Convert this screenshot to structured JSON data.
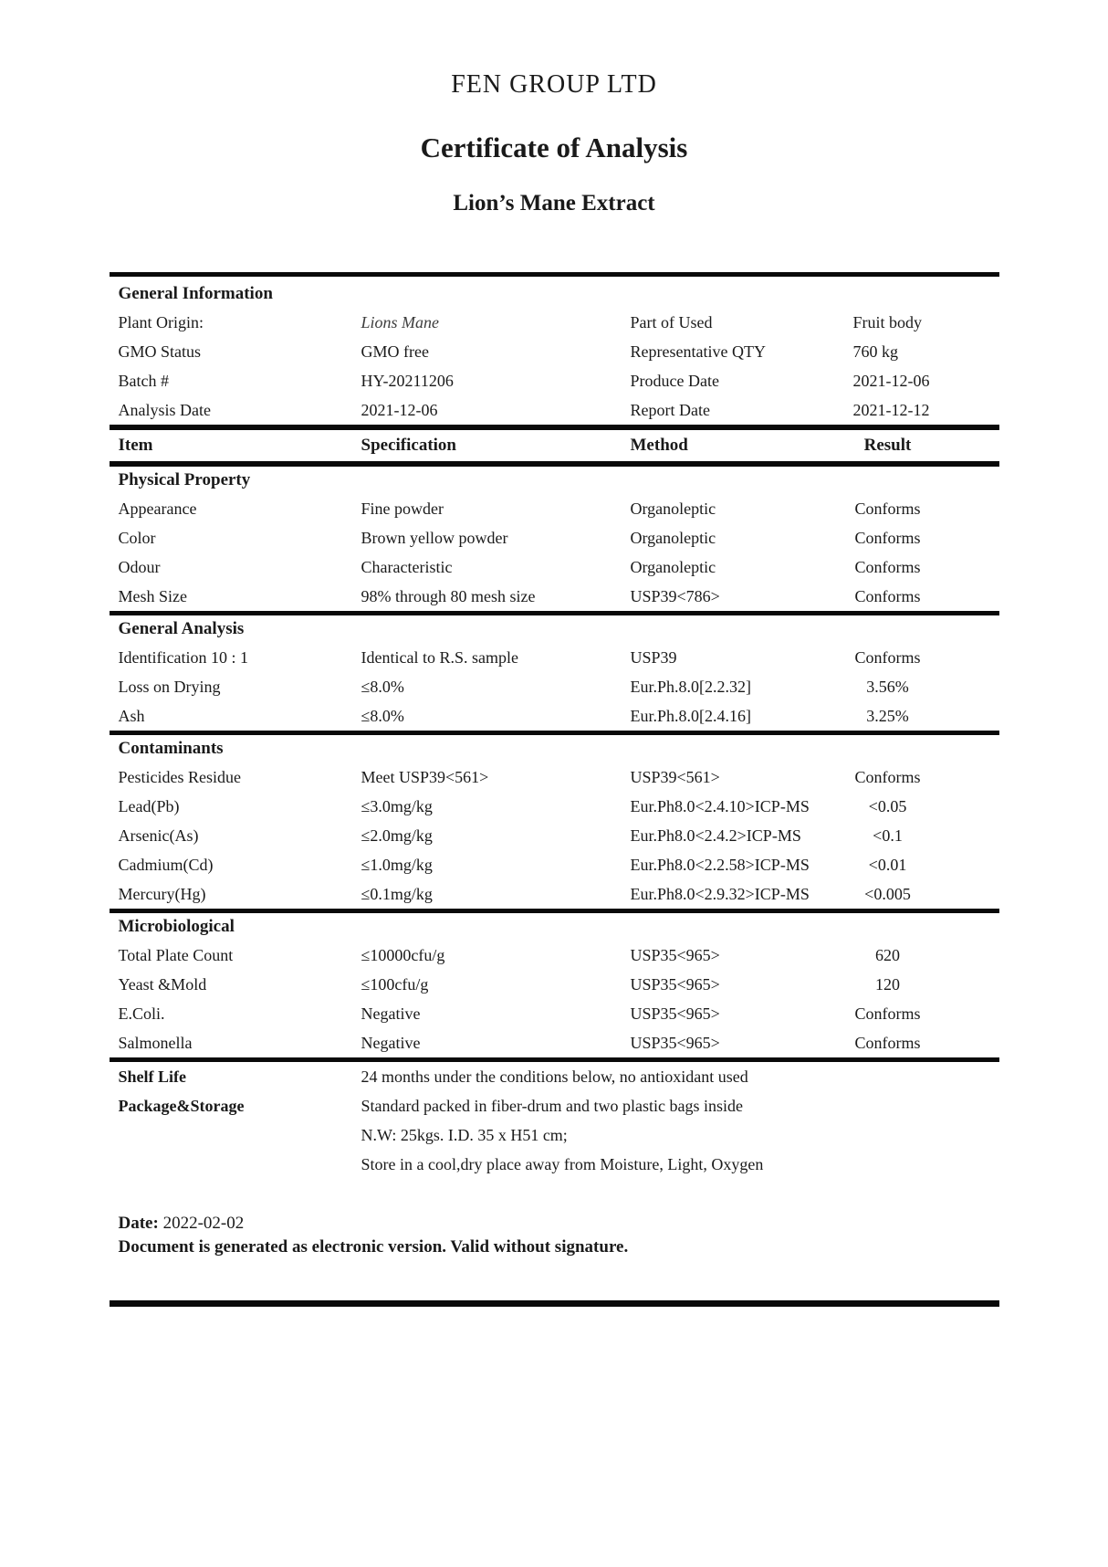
{
  "header": {
    "company": "FEN GROUP LTD",
    "title": "Certificate of Analysis",
    "subtitle": "Lion’s Mane Extract"
  },
  "colors": {
    "text": "#1a1a1a",
    "rule": "#0a0a0a",
    "background": "#ffffff"
  },
  "general_information": {
    "heading": "General Information",
    "rows": [
      {
        "cells": [
          "Plant Origin:",
          "Lions Mane",
          "Part of Used",
          "Fruit body"
        ],
        "italic_cell": 1
      },
      {
        "cells": [
          "GMO Status",
          "GMO free",
          "Representative QTY",
          "760 kg"
        ]
      },
      {
        "cells": [
          "Batch #",
          "HY-20211206",
          "Produce Date",
          "2021-12-06"
        ]
      },
      {
        "cells": [
          "Analysis Date",
          "2021-12-06",
          "Report Date",
          "2021-12-12"
        ]
      }
    ]
  },
  "table": {
    "headers": [
      "Item",
      "Specification",
      "Method",
      "Result"
    ],
    "sections": [
      {
        "heading": "Physical Property",
        "rows": [
          [
            "Appearance",
            "Fine powder",
            "Organoleptic",
            "Conforms"
          ],
          [
            "Color",
            "Brown yellow powder",
            "Organoleptic",
            "Conforms"
          ],
          [
            "Odour",
            "Characteristic",
            "Organoleptic",
            "Conforms"
          ],
          [
            "Mesh Size",
            "98% through 80 mesh size",
            "USP39<786>",
            "Conforms"
          ]
        ]
      },
      {
        "heading": "General Analysis",
        "rows": [
          [
            "Identification 10 : 1",
            "Identical to R.S. sample",
            "USP39",
            "Conforms"
          ],
          [
            "Loss on Drying",
            "≤8.0%",
            "Eur.Ph.8.0[2.2.32]",
            "3.56%"
          ],
          [
            "Ash",
            "≤8.0%",
            "Eur.Ph.8.0[2.4.16]",
            "3.25%"
          ]
        ]
      },
      {
        "heading": "Contaminants",
        "rows": [
          [
            "Pesticides Residue",
            "Meet USP39<561>",
            "USP39<561>",
            "Conforms"
          ],
          [
            "Lead(Pb)",
            "≤3.0mg/kg",
            "Eur.Ph8.0<2.4.10>ICP-MS",
            "<0.05"
          ],
          [
            "Arsenic(As)",
            "≤2.0mg/kg",
            "Eur.Ph8.0<2.4.2>ICP-MS",
            "<0.1"
          ],
          [
            "Cadmium(Cd)",
            "≤1.0mg/kg",
            "Eur.Ph8.0<2.2.58>ICP-MS",
            "<0.01"
          ],
          [
            "Mercury(Hg)",
            "≤0.1mg/kg",
            "Eur.Ph8.0<2.9.32>ICP-MS",
            "<0.005"
          ]
        ]
      },
      {
        "heading": "Microbiological",
        "rows": [
          [
            "Total Plate Count",
            "≤10000cfu/g",
            "USP35<965>",
            "620"
          ],
          [
            "Yeast &Mold",
            "≤100cfu/g",
            "USP35<965>",
            "120"
          ],
          [
            "E.Coli.",
            "Negative",
            "USP35<965>",
            "Conforms"
          ],
          [
            "Salmonella",
            "Negative",
            "USP35<965>",
            "Conforms"
          ]
        ]
      }
    ]
  },
  "footer": {
    "shelf_life_label": "Shelf Life",
    "shelf_life_value": "24 months under the conditions below, no antioxidant used",
    "package_label": "Package&Storage",
    "package_lines": [
      "Standard packed in fiber-drum and two plastic bags inside",
      "N.W: 25kgs. I.D. 35 x H51 cm;",
      "Store in a cool,dry place away from Moisture, Light, Oxygen"
    ],
    "date_label": "Date:",
    "date_value": "2022-02-02",
    "disclaimer": "Document is generated as electronic version. Valid without signature."
  }
}
